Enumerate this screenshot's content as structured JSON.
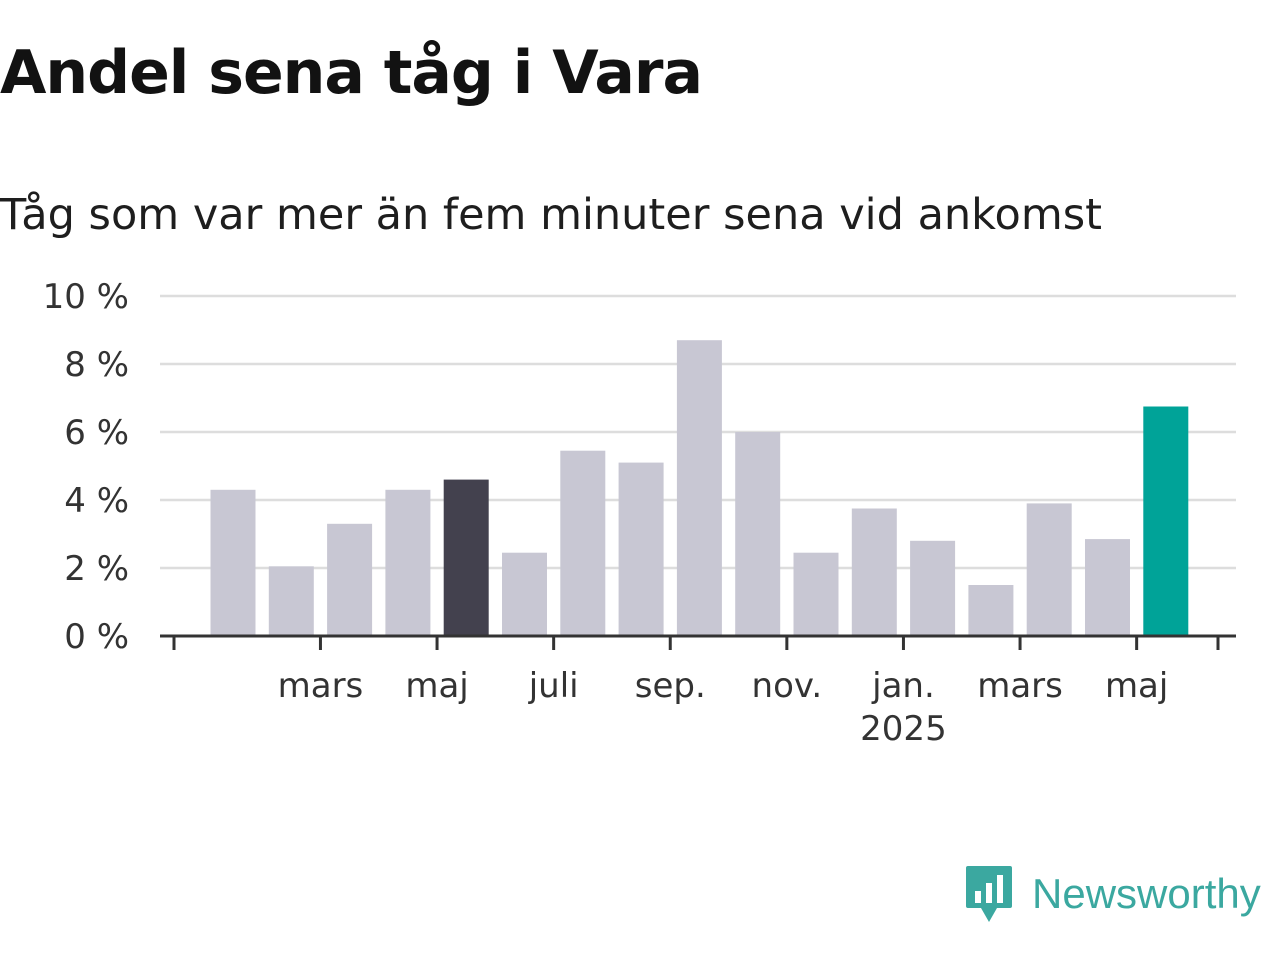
{
  "chart_data": {
    "type": "bar",
    "title": "Andel sena tåg i Vara",
    "subtitle": "Tåg som var mer än fem minuter sena vid ankomst",
    "ylim": [
      0,
      10
    ],
    "yticks": [
      0,
      2,
      4,
      6,
      8,
      10
    ],
    "y_tick_labels": [
      "0 %",
      "2 %",
      "4 %",
      "6 %",
      "8 %",
      "10 %"
    ],
    "values": [
      4.3,
      2.05,
      3.3,
      4.3,
      4.6,
      2.45,
      5.45,
      5.1,
      8.7,
      6.0,
      2.45,
      3.75,
      2.8,
      1.5,
      3.9,
      2.85,
      6.75
    ],
    "x_labels": [
      {
        "bar": 1.5,
        "label": "mars",
        "year": ""
      },
      {
        "bar": 3.5,
        "label": "maj",
        "year": ""
      },
      {
        "bar": 5.5,
        "label": "juli",
        "year": ""
      },
      {
        "bar": 7.5,
        "label": "sep.",
        "year": ""
      },
      {
        "bar": 9.5,
        "label": "nov.",
        "year": ""
      },
      {
        "bar": 11.5,
        "label": "jan.",
        "year": "2025"
      },
      {
        "bar": 13.5,
        "label": "mars",
        "year": ""
      },
      {
        "bar": 15.5,
        "label": "maj",
        "year": ""
      }
    ],
    "highlight_bars": {
      "4": "#43414e",
      "16": "#00a398"
    },
    "colors": {
      "bar": "#c8c7d3",
      "highlight_dark": "#43414e",
      "highlight_latest": "#00a398",
      "grid": "#dddddd",
      "axis": "#333333",
      "text": "#333333"
    },
    "grid": true,
    "legend": "none"
  },
  "logo": {
    "text": "Newsworthy",
    "icon": "bar-chart-speech-bubble-icon",
    "color": "#3ba8a0"
  }
}
